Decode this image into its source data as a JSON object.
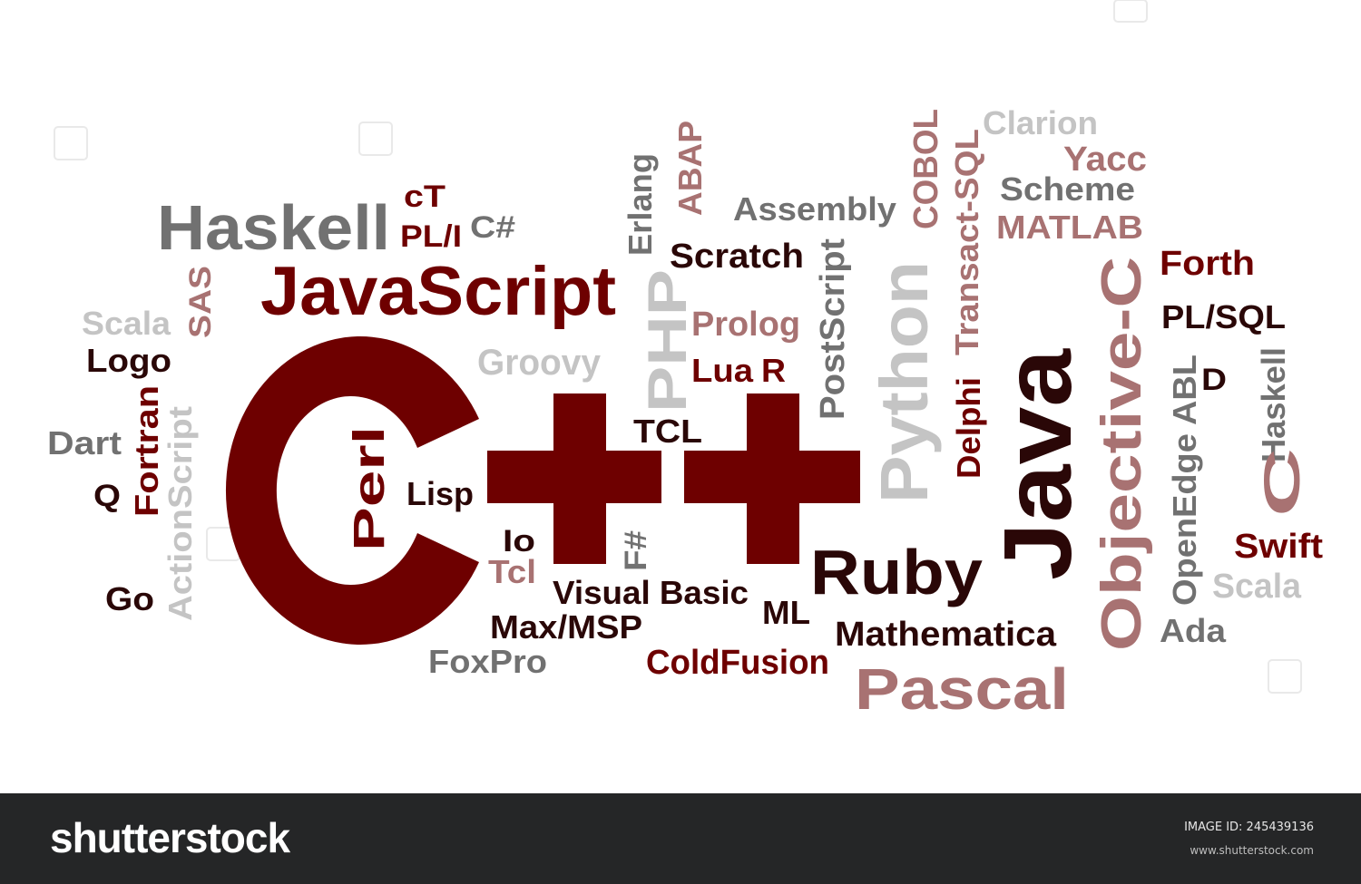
{
  "colors": {
    "maroon": "#6e0000",
    "dark": "#2a0707",
    "rose": "#a87272",
    "gray": "#717171",
    "silver": "#c4c4c4",
    "footer_bg": "#252627"
  },
  "words": [
    {
      "text": "C++",
      "color": "maroon"
    },
    {
      "text": "JavaScript",
      "color": "maroon"
    },
    {
      "text": "Haskell",
      "color": "gray"
    },
    {
      "text": "Java",
      "color": "dark"
    },
    {
      "text": "Objective-C",
      "color": "rose"
    },
    {
      "text": "Python",
      "color": "silver"
    },
    {
      "text": "Pascal",
      "color": "rose"
    },
    {
      "text": "Ruby",
      "color": "dark"
    },
    {
      "text": "PHP",
      "color": "silver"
    },
    {
      "text": "Perl",
      "color": "maroon"
    },
    {
      "text": "cT",
      "color": "maroon"
    },
    {
      "text": "PL/I",
      "color": "maroon"
    },
    {
      "text": "C#",
      "color": "gray"
    },
    {
      "text": "Erlang",
      "color": "gray"
    },
    {
      "text": "ABAP",
      "color": "rose"
    },
    {
      "text": "Assembly",
      "color": "gray"
    },
    {
      "text": "COBOL",
      "color": "rose"
    },
    {
      "text": "Transact-SQL",
      "color": "rose"
    },
    {
      "text": "Clarion",
      "color": "silver"
    },
    {
      "text": "Yacc",
      "color": "rose"
    },
    {
      "text": "Scheme",
      "color": "gray"
    },
    {
      "text": "MATLAB",
      "color": "rose"
    },
    {
      "text": "Forth",
      "color": "maroon"
    },
    {
      "text": "PL/SQL",
      "color": "dark"
    },
    {
      "text": "Scratch",
      "color": "dark"
    },
    {
      "text": "PostScript",
      "color": "gray"
    },
    {
      "text": "Prolog",
      "color": "rose"
    },
    {
      "text": "Lua",
      "color": "maroon"
    },
    {
      "text": "R",
      "color": "maroon"
    },
    {
      "text": "Groovy",
      "color": "silver"
    },
    {
      "text": "Scala",
      "color": "silver"
    },
    {
      "text": "SAS",
      "color": "rose"
    },
    {
      "text": "Logo",
      "color": "dark"
    },
    {
      "text": "Dart",
      "color": "gray"
    },
    {
      "text": "Fortran",
      "color": "maroon"
    },
    {
      "text": "Q",
      "color": "dark"
    },
    {
      "text": "ActionScript",
      "color": "silver"
    },
    {
      "text": "Go",
      "color": "dark"
    },
    {
      "text": "TCL",
      "color": "dark"
    },
    {
      "text": "Lisp",
      "color": "dark"
    },
    {
      "text": "Io",
      "color": "dark"
    },
    {
      "text": "Tcl",
      "color": "rose"
    },
    {
      "text": "F#",
      "color": "gray"
    },
    {
      "text": "Visual Basic",
      "color": "dark"
    },
    {
      "text": "ML",
      "color": "dark"
    },
    {
      "text": "Max/MSP",
      "color": "dark"
    },
    {
      "text": "FoxPro",
      "color": "gray"
    },
    {
      "text": "ColdFusion",
      "color": "maroon"
    },
    {
      "text": "Mathematica",
      "color": "dark"
    },
    {
      "text": "Delphi",
      "color": "maroon"
    },
    {
      "text": "OpenEdge ABL",
      "color": "gray"
    },
    {
      "text": "D",
      "color": "dark"
    },
    {
      "text": "Haskell",
      "color": "gray"
    },
    {
      "text": "C",
      "color": "rose"
    },
    {
      "text": "Swift",
      "color": "maroon"
    },
    {
      "text": "Scala",
      "color": "silver"
    },
    {
      "text": "Ada",
      "color": "gray"
    }
  ],
  "footer": {
    "brand": "shutterstock",
    "image_id": "IMAGE ID: 245439136",
    "site": "www.shutterstock.com"
  }
}
